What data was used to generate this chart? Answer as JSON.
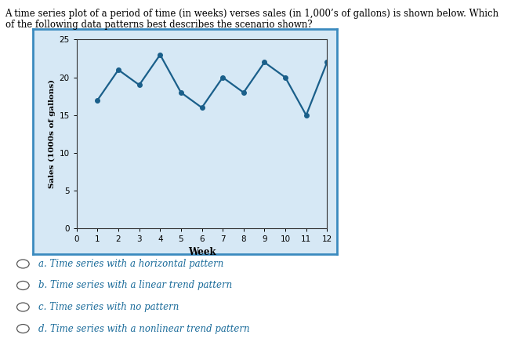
{
  "weeks": [
    1,
    2,
    3,
    4,
    5,
    6,
    7,
    8,
    9,
    10,
    11,
    12
  ],
  "sales": [
    17,
    21,
    19,
    23,
    18,
    16,
    20,
    18,
    22,
    20,
    15,
    22
  ],
  "xlabel": "Week",
  "ylabel": "Sales (1000s of gallons)",
  "xlim": [
    0,
    12
  ],
  "ylim": [
    0,
    25
  ],
  "xticks": [
    0,
    1,
    2,
    3,
    4,
    5,
    6,
    7,
    8,
    9,
    10,
    11,
    12
  ],
  "yticks": [
    0,
    5,
    10,
    15,
    20,
    25
  ],
  "line_color": "#1a5f8a",
  "marker": "o",
  "marker_size": 4,
  "bg_color": "#d6e8f5",
  "border_color": "#3a8abf",
  "question_text_line1": "A time series plot of a period of time (in weeks) verses sales (in 1,000’s of gallons) is shown below. Which",
  "question_text_line2": "of the following data patterns best describes the scenario shown?",
  "options": [
    "a. Time series with a horizontal pattern",
    "b. Time series with a linear trend pattern",
    "c. Time series with no pattern",
    "d. Time series with a nonlinear trend pattern"
  ],
  "option_color": "#1a6b9a"
}
